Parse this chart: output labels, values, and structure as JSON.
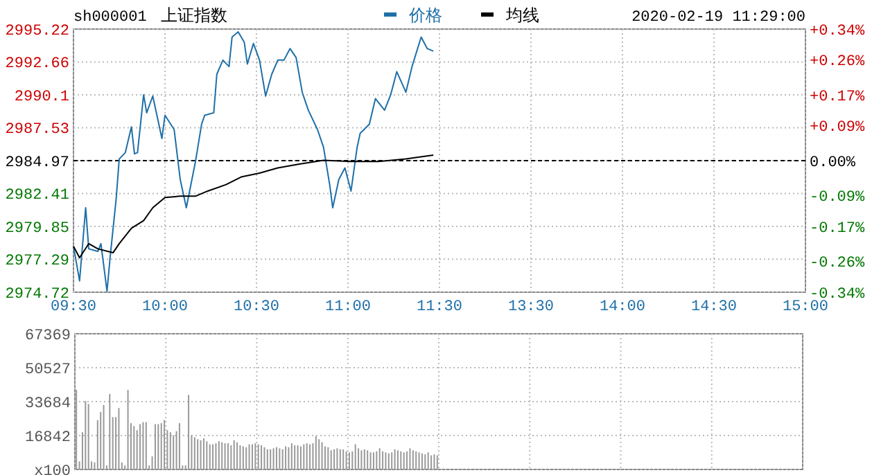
{
  "chart_data": [
    {
      "type": "line",
      "title": "上证指数",
      "annotations": [
        "sh000001",
        "2020-02-19 11:29:00"
      ],
      "legend": "top",
      "grid": true,
      "marker": "none",
      "line_style": "solid",
      "categories": [
        "09:30",
        null,
        null,
        null,
        null,
        null,
        null,
        null,
        null,
        null,
        null,
        null,
        null,
        null,
        null,
        null,
        null,
        null,
        null,
        null,
        null,
        null,
        null,
        null,
        null,
        null,
        null,
        null,
        null,
        null,
        "10:00",
        null,
        null,
        null,
        null,
        null,
        null,
        null,
        null,
        null,
        null,
        null,
        null,
        null,
        null,
        null,
        null,
        null,
        null,
        null,
        null,
        null,
        null,
        null,
        null,
        null,
        null,
        null,
        null,
        null,
        "10:30",
        null,
        null,
        null,
        null,
        null,
        null,
        null,
        null,
        null,
        null,
        null,
        null,
        null,
        null,
        null,
        null,
        null,
        null,
        null,
        null,
        null,
        null,
        null,
        null,
        null,
        null,
        null,
        null,
        null,
        "11:00",
        null,
        null,
        null,
        null,
        null,
        null,
        null,
        null,
        null,
        null,
        null,
        null,
        null,
        null,
        null,
        null,
        null,
        null,
        null,
        null,
        null,
        null,
        null,
        null,
        null,
        null,
        null,
        null,
        null,
        "11:30",
        null,
        null,
        null,
        null,
        null,
        null,
        null,
        null,
        null,
        null,
        null,
        null,
        null,
        null,
        null,
        null,
        null,
        null,
        null,
        null,
        null,
        null,
        null,
        null,
        null,
        null,
        null,
        null,
        null,
        "13:30",
        null,
        null,
        null,
        null,
        null,
        null,
        null,
        null,
        null,
        null,
        null,
        null,
        null,
        null,
        null,
        null,
        null,
        null,
        null,
        null,
        null,
        null,
        null,
        null,
        null,
        null,
        null,
        null,
        null,
        "14:00",
        null,
        null,
        null,
        null,
        null,
        null,
        null,
        null,
        null,
        null,
        null,
        null,
        null,
        null,
        null,
        null,
        null,
        null,
        null,
        null,
        null,
        null,
        null,
        null,
        null,
        null,
        null,
        null,
        null,
        "14:30",
        null,
        null,
        null,
        null,
        null,
        null,
        null,
        null,
        null,
        null,
        null,
        null,
        null,
        null,
        null,
        null,
        null,
        null,
        null,
        null,
        null,
        null,
        null,
        null,
        null,
        null,
        null,
        null,
        null,
        "15:00"
      ],
      "ylim": [
        2974.72,
        2995.22
      ],
      "yticks": [
        2974.72,
        2977.29,
        2979.85,
        2982.41,
        2984.97,
        2987.53,
        2990.1,
        2992.66,
        2995.22
      ],
      "y2lim": [
        -0.34,
        0.34
      ],
      "y2ticks": [
        {
          "value": -0.34,
          "label": "-0.34%"
        },
        {
          "value": -0.26,
          "label": "-0.26%"
        },
        {
          "value": -0.17,
          "label": "-0.17%"
        },
        {
          "value": -0.09,
          "label": "-0.09%"
        },
        {
          "value": 0,
          "label": "0.00%"
        },
        {
          "value": 0.09,
          "label": "+0.09%"
        },
        {
          "value": 0.17,
          "label": "+0.17%"
        },
        {
          "value": 0.26,
          "label": "+0.26%"
        },
        {
          "value": 0.34,
          "label": "+0.34%"
        }
      ],
      "ref_lines": [
        {
          "axis": "y",
          "value": 2984.97,
          "color": "#000000",
          "line_style": "dashed"
        }
      ],
      "series": [
        {
          "name": "价格",
          "color": "#1e6fa8",
          "values": [
            2978.3,
            null,
            2975.6,
            null,
            2981.3,
            2978.1,
            null,
            null,
            2977.9,
            2978.5,
            null,
            2974.8,
            2977.4,
            null,
            2982.0,
            2985.1,
            null,
            2985.6,
            null,
            2987.6,
            2985.5,
            2985.6,
            null,
            2990.1,
            2988.7,
            null,
            2990.0,
            null,
            null,
            2986.7,
            2988.5,
            null,
            null,
            2987.4,
            null,
            2983.5,
            null,
            2981.3,
            null,
            null,
            2984.9,
            null,
            2987.8,
            2988.5,
            null,
            null,
            2988.7,
            2991.7,
            null,
            2992.8,
            null,
            2992.3,
            2994.6,
            null,
            2995.0,
            null,
            2994.2,
            2992.5,
            null,
            2994.1,
            null,
            2992.8,
            null,
            2990.0,
            null,
            2991.7,
            null,
            2992.8,
            null,
            2992.8,
            null,
            2993.7,
            null,
            2993.0,
            null,
            2990.3,
            null,
            2988.9,
            null,
            null,
            2987.4,
            null,
            2986.0,
            null,
            2983.1,
            2981.3,
            null,
            2983.5,
            null,
            2984.4,
            null,
            2982.6,
            null,
            2986.0,
            2987.1,
            null,
            null,
            2987.8,
            null,
            2989.8,
            null,
            null,
            2988.9,
            null,
            2990.1,
            null,
            2991.9,
            null,
            null,
            2990.3,
            null,
            2992.3,
            null,
            null,
            2994.6,
            null,
            2993.7,
            null,
            2993.5,
            null,
            null,
            null,
            null,
            null,
            null,
            null,
            null,
            null,
            null,
            null,
            null,
            null,
            null,
            null,
            null,
            null,
            null,
            null,
            null,
            null,
            null,
            null,
            null,
            null,
            null,
            null,
            null,
            null,
            null,
            null,
            null,
            null,
            null,
            null,
            null,
            null,
            null,
            null,
            null,
            null,
            null,
            null,
            null,
            null,
            null,
            null,
            null,
            null,
            null,
            null,
            null,
            null,
            null,
            null,
            null,
            null,
            null,
            null,
            null,
            null,
            null,
            null,
            null,
            null,
            null,
            null,
            null,
            null,
            null,
            null,
            null,
            null,
            null,
            null,
            null,
            null,
            null,
            null,
            null,
            null,
            null,
            null,
            null,
            null,
            null,
            null,
            null,
            null,
            null,
            null,
            null,
            null,
            null,
            null,
            null,
            null,
            null,
            null,
            null,
            null,
            null,
            null,
            null,
            null,
            null,
            null,
            null,
            null,
            null,
            null,
            null,
            null,
            null,
            null,
            null,
            null,
            null,
            null,
            null,
            null,
            null
          ]
        },
        {
          "name": "均线",
          "color": "#000000",
          "values": [
            2978.3,
            null,
            2977.4,
            null,
            null,
            2978.5,
            null,
            null,
            2978.1,
            null,
            null,
            null,
            null,
            2977.8,
            null,
            2978.5,
            null,
            null,
            null,
            2979.7,
            null,
            null,
            null,
            2980.3,
            null,
            null,
            2981.3,
            null,
            null,
            null,
            2982.1,
            null,
            null,
            null,
            null,
            2982.2,
            null,
            null,
            null,
            null,
            2982.2,
            null,
            null,
            null,
            2982.6,
            null,
            null,
            null,
            null,
            null,
            2983.1,
            null,
            null,
            null,
            null,
            2983.7,
            null,
            null,
            null,
            null,
            null,
            2984.0,
            null,
            null,
            null,
            null,
            null,
            2984.4,
            null,
            null,
            null,
            null,
            null,
            null,
            2984.7,
            null,
            null,
            null,
            null,
            null,
            null,
            null,
            2985.0,
            null,
            null,
            null,
            null,
            null,
            null,
            null,
            null,
            2984.9,
            null,
            null,
            null,
            null,
            null,
            null,
            null,
            null,
            2984.9,
            null,
            null,
            null,
            null,
            null,
            null,
            null,
            null,
            2985.1,
            null,
            null,
            null,
            null,
            null,
            null,
            null,
            null,
            2985.4,
            null,
            null,
            null,
            null,
            null,
            null,
            null,
            null,
            null,
            null,
            null,
            null,
            null,
            null,
            null,
            null,
            null,
            null,
            null,
            null,
            null,
            null,
            null,
            null,
            null,
            null,
            null,
            null,
            null,
            null,
            null,
            null,
            null,
            null,
            null,
            null,
            null,
            null,
            null,
            null,
            null,
            null,
            null,
            null,
            null,
            null,
            null,
            null,
            null,
            null,
            null,
            null,
            null,
            null,
            null,
            null,
            null,
            null,
            null,
            null,
            null,
            null,
            null,
            null,
            null,
            null,
            null,
            null,
            null,
            null,
            null,
            null,
            null,
            null,
            null,
            null,
            null,
            null,
            null,
            null,
            null,
            null,
            null,
            null,
            null,
            null,
            null,
            null,
            null,
            null,
            null,
            null,
            null,
            null,
            null,
            null,
            null,
            null,
            null,
            null,
            null,
            null,
            null,
            null,
            null,
            null,
            null,
            null,
            null,
            null,
            null,
            null,
            null,
            null,
            null,
            null,
            null,
            null,
            null,
            null,
            null,
            null
          ]
        }
      ]
    },
    {
      "type": "bar",
      "grid": true,
      "tick_labels": "y",
      "categories": [
        null,
        null,
        null,
        null,
        null,
        null,
        null,
        null,
        null,
        null,
        null,
        null,
        null,
        null,
        null,
        null,
        null,
        null,
        null,
        null,
        null,
        null,
        null,
        null,
        null,
        null,
        null,
        null,
        null,
        null,
        null,
        null,
        null,
        null,
        null,
        null,
        null,
        null,
        null,
        null,
        null,
        null,
        null,
        null,
        null,
        null,
        null,
        null,
        null,
        null,
        null,
        null,
        null,
        null,
        null,
        null,
        null,
        null,
        null,
        null,
        null,
        null,
        null,
        null,
        null,
        null,
        null,
        null,
        null,
        null,
        null,
        null,
        null,
        null,
        null,
        null,
        null,
        null,
        null,
        null,
        null,
        null,
        null,
        null,
        null,
        null,
        null,
        null,
        null,
        null,
        null,
        null,
        null,
        null,
        null,
        null,
        null,
        null,
        null,
        null,
        null,
        null,
        null,
        null,
        null,
        null,
        null,
        null,
        null,
        null,
        null,
        null,
        null,
        null,
        null,
        null,
        null,
        null,
        null,
        null,
        null,
        null,
        null,
        null,
        null,
        null,
        null,
        null,
        null,
        null,
        null,
        null,
        null,
        null,
        null,
        null,
        null,
        null,
        null,
        null,
        null,
        null,
        null,
        null,
        null,
        null,
        null,
        null,
        null,
        null,
        null,
        null,
        null,
        null,
        null,
        null,
        null,
        null,
        null,
        null,
        null,
        null,
        null,
        null,
        null,
        null,
        null,
        null,
        null,
        null,
        null,
        null,
        null,
        null,
        null,
        null,
        null,
        null,
        null,
        null,
        null,
        null,
        null,
        null,
        null,
        null,
        null,
        null,
        null,
        null,
        null,
        null,
        null,
        null,
        null,
        null,
        null,
        null,
        null,
        null,
        null,
        null,
        null,
        null,
        null,
        null,
        null,
        null,
        null,
        null,
        null,
        null,
        null,
        null,
        null,
        null,
        null,
        null,
        null,
        null,
        null,
        null,
        null,
        null,
        null,
        null,
        null,
        null,
        null,
        null,
        null,
        null,
        null,
        null,
        null,
        null,
        null,
        null,
        null,
        null,
        null
      ],
      "ylim": [
        0,
        67369
      ],
      "yticks": [
        {
          "value": 0,
          "label": "x100"
        },
        16842,
        33684,
        50527,
        67369
      ],
      "series": [
        {
          "color": "#999999",
          "values": [
            39500,
            4000,
            18500,
            34000,
            32500,
            4000,
            3500,
            24500,
            28500,
            32000,
            2000,
            37500,
            26000,
            26000,
            30500,
            3500,
            2000,
            39500,
            23000,
            21500,
            19500,
            22500,
            23500,
            23500,
            2000,
            6500,
            22500,
            22500,
            23000,
            24500,
            19500,
            18500,
            17000,
            19000,
            23000,
            2000,
            2000,
            37000,
            17000,
            16000,
            15000,
            14500,
            15500,
            14000,
            12500,
            12500,
            13000,
            14000,
            13500,
            13000,
            13000,
            12000,
            14500,
            13500,
            12000,
            11500,
            11000,
            12500,
            12500,
            13000,
            12500,
            12000,
            11000,
            10000,
            10000,
            10500,
            11000,
            10500,
            10000,
            11500,
            11000,
            13000,
            12000,
            12000,
            11500,
            12500,
            13000,
            12500,
            13000,
            16500,
            15000,
            13500,
            11500,
            11000,
            9500,
            10000,
            10500,
            10000,
            10000,
            9000,
            8500,
            9000,
            12500,
            10500,
            9500,
            10000,
            9500,
            8500,
            8500,
            9000,
            10500,
            9000,
            8500,
            8000,
            8500,
            10000,
            9500,
            9000,
            8500,
            9000,
            10500,
            9500,
            9000,
            8500,
            8000,
            7500,
            8500,
            7000,
            7500,
            7000,
            null,
            null,
            null,
            null,
            null,
            null,
            null,
            null,
            null,
            null,
            null,
            null,
            null,
            null,
            null,
            null,
            null,
            null,
            null,
            null,
            null,
            null,
            null,
            null,
            null,
            null,
            null,
            null,
            null,
            null,
            null,
            null,
            null,
            null,
            null,
            null,
            null,
            null,
            null,
            null,
            null,
            null,
            null,
            null,
            null,
            null,
            null,
            null,
            null,
            null,
            null,
            null,
            null,
            null,
            null,
            null,
            null,
            null,
            null,
            null,
            null,
            null,
            null,
            null,
            null,
            null,
            null,
            null,
            null,
            null,
            null,
            null,
            null,
            null,
            null,
            null,
            null,
            null,
            null,
            null,
            null,
            null,
            null,
            null,
            null,
            null,
            null,
            null,
            null,
            null,
            null,
            null,
            null,
            null,
            null,
            null,
            null,
            null,
            null,
            null,
            null,
            null,
            null,
            null,
            null,
            null,
            null,
            null,
            null,
            null,
            null,
            null,
            null,
            null,
            null,
            null,
            null,
            null,
            null,
            null,
            null
          ]
        }
      ]
    }
  ]
}
